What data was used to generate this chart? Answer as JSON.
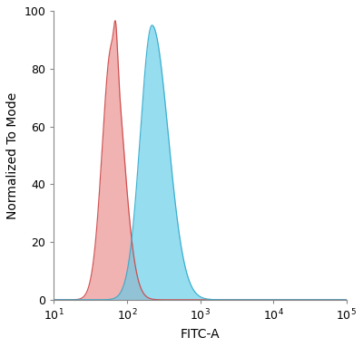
{
  "xlim": [
    10,
    100000
  ],
  "ylim": [
    0,
    100
  ],
  "xlabel": "FITC-A",
  "ylabel": "Normalized To Mode",
  "yticks": [
    0,
    20,
    40,
    60,
    80,
    100
  ],
  "background_color": "#ffffff",
  "red_peak_x": 62,
  "red_peak_y": 88,
  "red_spike_x": 70,
  "red_spike_y": 84,
  "blue_peak_x": 220,
  "blue_peak_y": 95,
  "red_fill_color": "#e88080",
  "red_edge_color": "#cc4444",
  "blue_fill_color": "#60cce8",
  "blue_edge_color": "#30aacc",
  "red_fill_alpha": 0.6,
  "blue_fill_alpha": 0.65,
  "font_size_label": 10,
  "font_size_tick": 9
}
